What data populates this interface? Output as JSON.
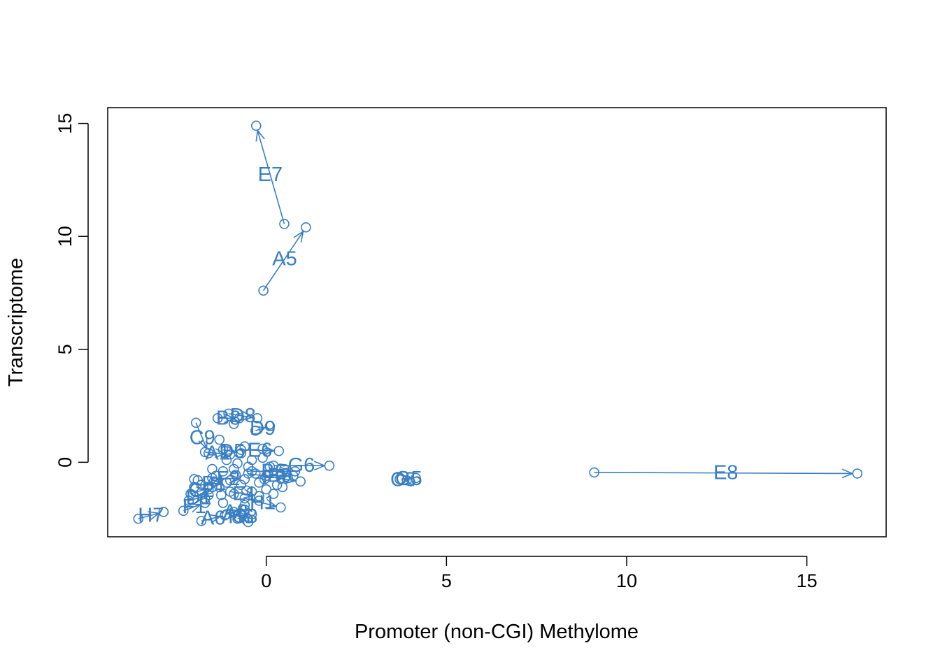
{
  "chart_data": {
    "type": "scatter",
    "title": "",
    "xlabel": "Promoter (non-CGI) Methylome",
    "ylabel": "Transcriptome",
    "xlim": [
      -4.4,
      17.2
    ],
    "ylim": [
      -3.3,
      15.7
    ],
    "xticks": [
      0,
      5,
      10,
      15
    ],
    "xtick_labels": [
      "0",
      "5",
      "10",
      "15"
    ],
    "yticks": [
      0,
      5,
      10,
      15
    ],
    "ytick_labels": [
      "0",
      "5",
      "10",
      "15"
    ],
    "grid": false,
    "legend": "none",
    "color": "#3a7fc4",
    "labeled_arrows": [
      {
        "label": "E7",
        "from": [
          0.5,
          10.55
        ],
        "to": [
          -0.28,
          14.9
        ]
      },
      {
        "label": "A5",
        "from": [
          -0.08,
          7.6
        ],
        "to": [
          1.1,
          10.4
        ]
      },
      {
        "label": "E8",
        "from": [
          9.1,
          -0.45
        ],
        "to": [
          16.4,
          -0.5
        ]
      },
      {
        "label": "G5",
        "from": [
          3.75,
          -0.75
        ],
        "to": [
          4.15,
          -0.7
        ]
      },
      {
        "label": "C5",
        "from": [
          3.9,
          -0.8
        ],
        "to": [
          3.7,
          -0.75
        ]
      },
      {
        "label": "H7",
        "from": [
          -3.55,
          -2.5
        ],
        "to": [
          -2.85,
          -2.2
        ]
      },
      {
        "label": "D9",
        "from": [
          -0.3,
          1.4
        ],
        "to": [
          0.1,
          1.6
        ]
      },
      {
        "label": "C9",
        "from": [
          -1.95,
          1.75
        ],
        "to": [
          -1.6,
          0.4
        ]
      },
      {
        "label": "B8",
        "from": [
          -1.35,
          1.95
        ],
        "to": [
          -0.75,
          1.95
        ]
      },
      {
        "label": "D8",
        "from": [
          -1.05,
          2.15
        ],
        "to": [
          -0.25,
          1.95
        ]
      },
      {
        "label": "G6",
        "from": [
          0.2,
          -0.15
        ],
        "to": [
          1.75,
          -0.15
        ]
      },
      {
        "label": "A1",
        "from": [
          -1.7,
          0.45
        ],
        "to": [
          -1.0,
          0.35
        ]
      },
      {
        "label": "D5",
        "from": [
          -1.2,
          0.55
        ],
        "to": [
          -0.7,
          0.4
        ]
      },
      {
        "label": "E6",
        "from": [
          -0.7,
          0.55
        ],
        "to": [
          0.35,
          0.5
        ]
      },
      {
        "label": "F6",
        "from": [
          -0.5,
          -0.5
        ],
        "to": [
          0.95,
          -0.85
        ]
      },
      {
        "label": "B6",
        "from": [
          -0.4,
          -0.4
        ],
        "to": [
          0.8,
          -0.4
        ]
      },
      {
        "label": "B9",
        "from": [
          0.0,
          -0.6
        ],
        "to": [
          0.75,
          -0.6
        ]
      },
      {
        "label": "F2",
        "from": [
          -1.5,
          -0.7
        ],
        "to": [
          -0.6,
          -0.75
        ]
      },
      {
        "label": "B1",
        "from": [
          -1.8,
          -1.0
        ],
        "to": [
          -1.1,
          -0.9
        ]
      },
      {
        "label": "C2",
        "from": [
          -2.1,
          -1.4
        ],
        "to": [
          -1.5,
          -1.1
        ]
      },
      {
        "label": "D1",
        "from": [
          -2.15,
          -1.7
        ],
        "to": [
          -1.6,
          -1.45
        ]
      },
      {
        "label": "E1",
        "from": [
          -1.0,
          -1.3
        ],
        "to": [
          -0.2,
          -1.5
        ]
      },
      {
        "label": "H1",
        "from": [
          -0.6,
          -1.6
        ],
        "to": [
          0.4,
          -2.0
        ]
      },
      {
        "label": "F1",
        "from": [
          -2.3,
          -2.15
        ],
        "to": [
          -1.7,
          -1.8
        ]
      },
      {
        "label": "A6",
        "from": [
          -1.8,
          -2.6
        ],
        "to": [
          -1.15,
          -2.35
        ]
      },
      {
        "label": "A8",
        "from": [
          -1.1,
          -2.3
        ],
        "to": [
          -0.6,
          -2.1
        ]
      },
      {
        "label": "C8",
        "from": [
          -0.8,
          -2.5
        ],
        "to": [
          -0.4,
          -2.3
        ]
      },
      {
        "label": "H6",
        "from": [
          -0.5,
          -2.65
        ],
        "to": [
          -0.9,
          -2.2
        ]
      }
    ],
    "extra_points": [
      [
        -1.2,
        -0.4
      ],
      [
        -0.9,
        -0.3
      ],
      [
        -0.5,
        -0.2
      ],
      [
        -0.3,
        -0.5
      ],
      [
        0.1,
        -0.2
      ],
      [
        -1.4,
        -0.6
      ],
      [
        -1.0,
        -0.8
      ],
      [
        -0.7,
        -1.0
      ],
      [
        -0.2,
        -0.9
      ],
      [
        0.3,
        -1.0
      ],
      [
        -1.6,
        -1.2
      ],
      [
        -1.3,
        -1.1
      ],
      [
        -0.9,
        -1.4
      ],
      [
        -0.4,
        -1.3
      ],
      [
        0.0,
        -1.2
      ],
      [
        -1.9,
        -0.8
      ],
      [
        -2.0,
        -1.1
      ],
      [
        -1.7,
        -1.6
      ],
      [
        -1.2,
        -1.8
      ],
      [
        -0.6,
        -1.9
      ],
      [
        -0.2,
        -1.7
      ],
      [
        0.2,
        -1.4
      ],
      [
        0.45,
        -1.1
      ],
      [
        0.6,
        -0.7
      ],
      [
        -1.1,
        0.1
      ],
      [
        -0.8,
        -0.05
      ],
      [
        -0.4,
        0.1
      ],
      [
        -0.1,
        0.2
      ],
      [
        0.5,
        -0.3
      ],
      [
        -1.5,
        -0.3
      ],
      [
        -1.3,
        1.0
      ],
      [
        -0.9,
        1.7
      ],
      [
        -0.6,
        0.7
      ],
      [
        -0.1,
        0.6
      ],
      [
        -2.0,
        -0.75
      ],
      [
        -1.45,
        -0.85
      ],
      [
        -0.85,
        -0.55
      ],
      [
        -0.05,
        -0.75
      ],
      [
        -0.55,
        -1.25
      ],
      [
        -1.25,
        -1.45
      ]
    ]
  }
}
